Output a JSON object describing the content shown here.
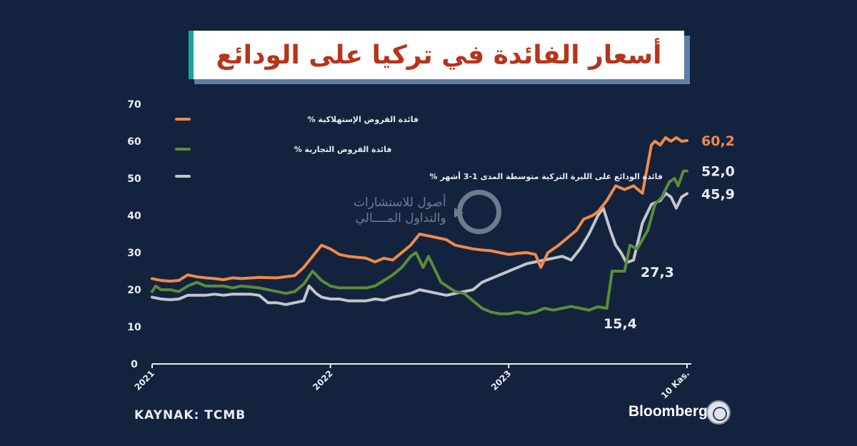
{
  "title": "أسعار الفائدة في تركيا على الودائع",
  "source": "KAYNAK: TCMB",
  "brand": "Bloomberg",
  "watermark": {
    "line1": "أصول للاستشارات",
    "line2": "والتداول المــــالي"
  },
  "colors": {
    "background": "#14233d",
    "consumer": "#f08a4b",
    "commercial": "#5b8c3a",
    "deposit": "#c2c6cc",
    "axis": "#e8ecf3"
  },
  "chart_data": {
    "type": "line",
    "x_ticks": [
      "2021",
      "2022",
      "2023",
      "10 Kas."
    ],
    "y_ticks": [
      0,
      10,
      20,
      30,
      40,
      50,
      60,
      70
    ],
    "ylim": [
      0,
      70
    ],
    "legend_position": "top-left",
    "series": [
      {
        "name": "فائدة القروض الإستهلاكية %",
        "end_label": "60,2",
        "points": [
          [
            2021.0,
            23
          ],
          [
            2021.05,
            22.5
          ],
          [
            2021.1,
            22.3
          ],
          [
            2021.15,
            22.5
          ],
          [
            2021.2,
            24
          ],
          [
            2021.25,
            23.5
          ],
          [
            2021.3,
            23.2
          ],
          [
            2021.35,
            23
          ],
          [
            2021.4,
            22.7
          ],
          [
            2021.45,
            23.2
          ],
          [
            2021.5,
            23
          ],
          [
            2021.6,
            23.3
          ],
          [
            2021.7,
            23.2
          ],
          [
            2021.8,
            23.8
          ],
          [
            2021.85,
            26
          ],
          [
            2021.9,
            29
          ],
          [
            2021.95,
            32
          ],
          [
            2022.0,
            31
          ],
          [
            2022.05,
            29.5
          ],
          [
            2022.1,
            29
          ],
          [
            2022.2,
            28.5
          ],
          [
            2022.25,
            27.5
          ],
          [
            2022.3,
            28.5
          ],
          [
            2022.35,
            28
          ],
          [
            2022.4,
            30
          ],
          [
            2022.45,
            32
          ],
          [
            2022.5,
            35
          ],
          [
            2022.55,
            34.5
          ],
          [
            2022.6,
            34
          ],
          [
            2022.65,
            33.5
          ],
          [
            2022.7,
            32
          ],
          [
            2022.75,
            31.5
          ],
          [
            2022.8,
            31
          ],
          [
            2022.85,
            30.7
          ],
          [
            2022.9,
            30.5
          ],
          [
            2022.95,
            30
          ],
          [
            2023.0,
            29.5
          ],
          [
            2023.05,
            29.8
          ],
          [
            2023.1,
            30
          ],
          [
            2023.15,
            29.5
          ],
          [
            2023.18,
            26
          ],
          [
            2023.22,
            30
          ],
          [
            2023.28,
            32
          ],
          [
            2023.33,
            34
          ],
          [
            2023.38,
            36
          ],
          [
            2023.42,
            39
          ],
          [
            2023.47,
            40
          ],
          [
            2023.5,
            41
          ],
          [
            2023.55,
            44
          ],
          [
            2023.6,
            48
          ],
          [
            2023.65,
            47
          ],
          [
            2023.7,
            48
          ],
          [
            2023.75,
            46
          ],
          [
            2023.8,
            59
          ],
          [
            2023.82,
            60
          ],
          [
            2023.85,
            59
          ],
          [
            2023.88,
            61
          ],
          [
            2023.91,
            60
          ],
          [
            2023.94,
            61
          ],
          [
            2023.97,
            60
          ],
          [
            2024.0,
            60.2
          ]
        ]
      },
      {
        "name": "فائدة القروض التجارية %",
        "end_label": "52,0",
        "points": [
          [
            2021.0,
            19.5
          ],
          [
            2021.02,
            21
          ],
          [
            2021.05,
            20
          ],
          [
            2021.1,
            20
          ],
          [
            2021.15,
            19.5
          ],
          [
            2021.2,
            21
          ],
          [
            2021.25,
            22
          ],
          [
            2021.3,
            21
          ],
          [
            2021.35,
            21
          ],
          [
            2021.4,
            21
          ],
          [
            2021.45,
            20.5
          ],
          [
            2021.5,
            21
          ],
          [
            2021.6,
            20.5
          ],
          [
            2021.7,
            19.5
          ],
          [
            2021.75,
            19
          ],
          [
            2021.8,
            19.5
          ],
          [
            2021.85,
            21.5
          ],
          [
            2021.9,
            25
          ],
          [
            2021.95,
            22.5
          ],
          [
            2022.0,
            21
          ],
          [
            2022.05,
            20.5
          ],
          [
            2022.1,
            20.5
          ],
          [
            2022.15,
            20.5
          ],
          [
            2022.2,
            20.5
          ],
          [
            2022.25,
            21
          ],
          [
            2022.3,
            22.5
          ],
          [
            2022.35,
            24
          ],
          [
            2022.4,
            26
          ],
          [
            2022.45,
            29
          ],
          [
            2022.48,
            30
          ],
          [
            2022.52,
            26
          ],
          [
            2022.55,
            29
          ],
          [
            2022.58,
            26
          ],
          [
            2022.62,
            22
          ],
          [
            2022.7,
            19.5
          ],
          [
            2022.75,
            19
          ],
          [
            2022.8,
            17
          ],
          [
            2022.85,
            15
          ],
          [
            2022.9,
            14
          ],
          [
            2022.95,
            13.5
          ],
          [
            2023.0,
            13.5
          ],
          [
            2023.05,
            14
          ],
          [
            2023.1,
            13.5
          ],
          [
            2023.15,
            14
          ],
          [
            2023.2,
            15
          ],
          [
            2023.25,
            14.5
          ],
          [
            2023.3,
            15
          ],
          [
            2023.35,
            15.5
          ],
          [
            2023.4,
            15
          ],
          [
            2023.45,
            14.5
          ],
          [
            2023.5,
            15.4
          ],
          [
            2023.55,
            15
          ],
          [
            2023.58,
            25
          ],
          [
            2023.62,
            25
          ],
          [
            2023.65,
            25
          ],
          [
            2023.68,
            32
          ],
          [
            2023.72,
            31
          ],
          [
            2023.78,
            36
          ],
          [
            2023.82,
            43
          ],
          [
            2023.86,
            45
          ],
          [
            2023.9,
            49
          ],
          [
            2023.93,
            50
          ],
          [
            2023.95,
            48
          ],
          [
            2023.98,
            52
          ],
          [
            2024.0,
            52.0
          ]
        ]
      },
      {
        "name": "فائدة الودائع على الليرة التركية متوسطة المدى 1-3 أشهر %",
        "end_label": "45,9",
        "points": [
          [
            2021.0,
            18
          ],
          [
            2021.05,
            17.5
          ],
          [
            2021.1,
            17.3
          ],
          [
            2021.15,
            17.5
          ],
          [
            2021.2,
            18.5
          ],
          [
            2021.25,
            18.5
          ],
          [
            2021.3,
            18.5
          ],
          [
            2021.35,
            18.8
          ],
          [
            2021.4,
            18.5
          ],
          [
            2021.45,
            18.8
          ],
          [
            2021.5,
            18.8
          ],
          [
            2021.55,
            18.8
          ],
          [
            2021.6,
            18.5
          ],
          [
            2021.65,
            16.5
          ],
          [
            2021.7,
            16.5
          ],
          [
            2021.75,
            16
          ],
          [
            2021.8,
            16.5
          ],
          [
            2021.85,
            17
          ],
          [
            2021.88,
            21
          ],
          [
            2021.92,
            19
          ],
          [
            2021.95,
            18
          ],
          [
            2022.0,
            17.5
          ],
          [
            2022.05,
            17.5
          ],
          [
            2022.1,
            17
          ],
          [
            2022.15,
            17
          ],
          [
            2022.2,
            17
          ],
          [
            2022.25,
            17.5
          ],
          [
            2022.3,
            17.2
          ],
          [
            2022.35,
            18
          ],
          [
            2022.4,
            18.5
          ],
          [
            2022.45,
            19
          ],
          [
            2022.5,
            20
          ],
          [
            2022.55,
            19.5
          ],
          [
            2022.6,
            19
          ],
          [
            2022.65,
            18.5
          ],
          [
            2022.7,
            19
          ],
          [
            2022.75,
            19.5
          ],
          [
            2022.8,
            20
          ],
          [
            2022.85,
            22
          ],
          [
            2022.9,
            23
          ],
          [
            2022.95,
            24
          ],
          [
            2023.0,
            25
          ],
          [
            2023.05,
            26
          ],
          [
            2023.1,
            27
          ],
          [
            2023.15,
            27.5
          ],
          [
            2023.2,
            28
          ],
          [
            2023.25,
            28.5
          ],
          [
            2023.3,
            29
          ],
          [
            2023.35,
            28
          ],
          [
            2023.4,
            31
          ],
          [
            2023.45,
            35
          ],
          [
            2023.5,
            40
          ],
          [
            2023.53,
            42
          ],
          [
            2023.57,
            36
          ],
          [
            2023.6,
            32
          ],
          [
            2023.63,
            30
          ],
          [
            2023.66,
            27.3
          ],
          [
            2023.7,
            28
          ],
          [
            2023.75,
            38
          ],
          [
            2023.8,
            43
          ],
          [
            2023.85,
            44
          ],
          [
            2023.88,
            46
          ],
          [
            2023.91,
            45
          ],
          [
            2023.94,
            42
          ],
          [
            2023.97,
            45
          ],
          [
            2024.0,
            45.9
          ]
        ]
      }
    ],
    "annotations": [
      {
        "text": "27,3",
        "x": 2023.66,
        "y": 27.3
      },
      {
        "text": "15,4",
        "x": 2023.5,
        "y": 15.4
      }
    ]
  }
}
